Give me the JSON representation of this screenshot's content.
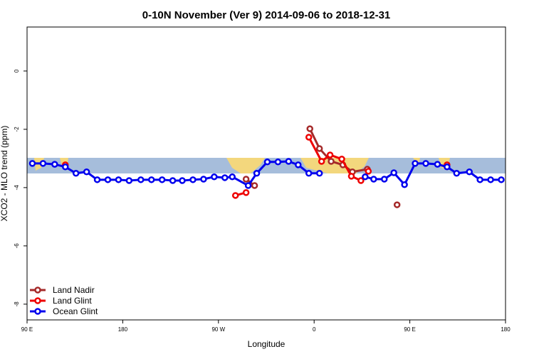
{
  "chart_data": {
    "type": "line",
    "title": "0-10N November (Ver 9)   2014-09-06 to 2018-12-31",
    "x_label": "Longitude",
    "y_label": "XCO2 - MLO trend (ppm)",
    "xlim": [
      90,
      540
    ],
    "ylim": [
      -8.54,
      1.51
    ],
    "xticks": [
      {
        "value": 90,
        "label": "90 E"
      },
      180,
      {
        "value": 270,
        "label": "90 W"
      },
      {
        "value": 360,
        "label": "0"
      },
      {
        "value": 450,
        "label": "90 E"
      },
      {
        "value": 540,
        "label": "180"
      }
    ],
    "yticks": [
      0,
      -2,
      -4,
      -6,
      -8
    ],
    "legend": "bottom-left",
    "series": [
      {
        "name": "Land Nadir",
        "color": "#a52a2a",
        "x": [
          296,
          304,
          330,
          356,
          365,
          376,
          387,
          396,
          410,
          425,
          438
        ],
        "values": [
          -3.71,
          -3.93,
          null,
          -1.98,
          -2.66,
          -3.1,
          -3.22,
          -3.46,
          -3.37,
          null,
          -4.59
        ]
      },
      {
        "name": "Land Glint",
        "color": "#ee0000",
        "x": [
          126,
          200,
          286,
          296,
          320,
          355,
          367,
          375,
          386,
          395,
          404,
          411,
          450,
          485
        ],
        "values": [
          -3.22,
          null,
          -4.27,
          -4.17,
          null,
          -2.27,
          -3.1,
          -2.88,
          -3.02,
          -3.61,
          -3.76,
          -3.44,
          null,
          -3.22
        ]
      },
      {
        "name": "Ocean Glint",
        "color": "#0000ee",
        "x": [
          95,
          105,
          116,
          126,
          136,
          146,
          156,
          166,
          176,
          186,
          197,
          207,
          217,
          227,
          236,
          246,
          256,
          266,
          276,
          283,
          298,
          306,
          316,
          326,
          336,
          345,
          355,
          365,
          385,
          408,
          416,
          426,
          435,
          445,
          455,
          465,
          476,
          485,
          494,
          506,
          516,
          526,
          536
        ],
        "values": [
          -3.17,
          -3.17,
          -3.2,
          -3.29,
          -3.51,
          -3.46,
          -3.73,
          -3.73,
          -3.73,
          -3.76,
          -3.73,
          -3.73,
          -3.73,
          -3.76,
          -3.76,
          -3.73,
          -3.71,
          -3.63,
          -3.66,
          -3.63,
          -3.93,
          -3.51,
          -3.12,
          -3.12,
          -3.1,
          -3.22,
          -3.51,
          -3.51,
          null,
          -3.63,
          -3.71,
          -3.71,
          -3.49,
          -3.9,
          -3.17,
          -3.17,
          -3.2,
          -3.29,
          -3.51,
          -3.46,
          -3.73,
          -3.73,
          -3.73
        ]
      }
    ]
  }
}
